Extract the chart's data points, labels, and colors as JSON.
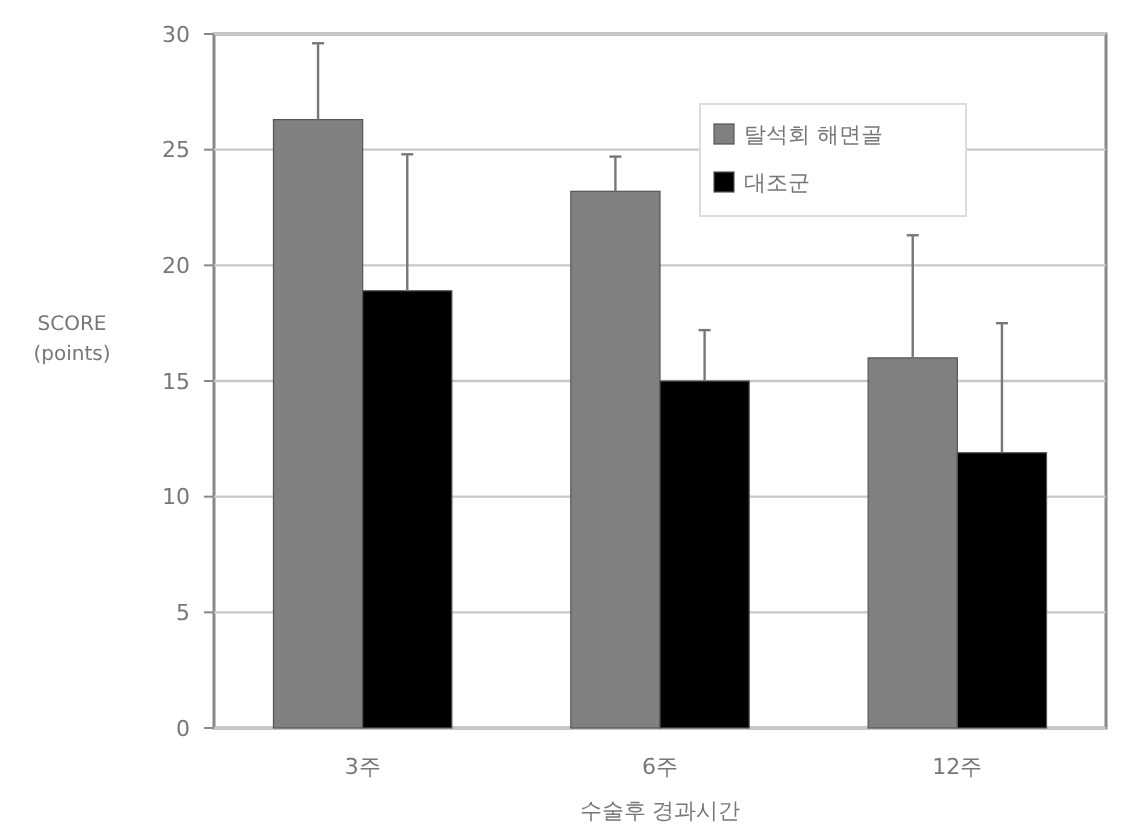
{
  "chart_data": {
    "type": "bar",
    "xlabel": "수술후 경과시간",
    "ylabel": "SCORE\n(points)",
    "categories": [
      "3주",
      "6주",
      "12주"
    ],
    "series": [
      {
        "name": "탈석회 해면골",
        "color": "#808080",
        "values": [
          26.3,
          23.2,
          16.0
        ],
        "errors": [
          [
            26.3,
            29.6
          ],
          [
            23.2,
            24.7
          ],
          [
            16.0,
            21.3
          ]
        ]
      },
      {
        "name": "대조군",
        "color": "#000000",
        "values": [
          18.9,
          15.0,
          11.9
        ],
        "errors": [
          [
            18.9,
            24.8
          ],
          [
            15.0,
            17.2
          ],
          [
            11.9,
            17.5
          ]
        ]
      }
    ],
    "ylim": [
      0,
      30
    ],
    "yticks": [
      0,
      5,
      10,
      15,
      20,
      25,
      30
    ],
    "grid": "y",
    "legend": "top right"
  }
}
